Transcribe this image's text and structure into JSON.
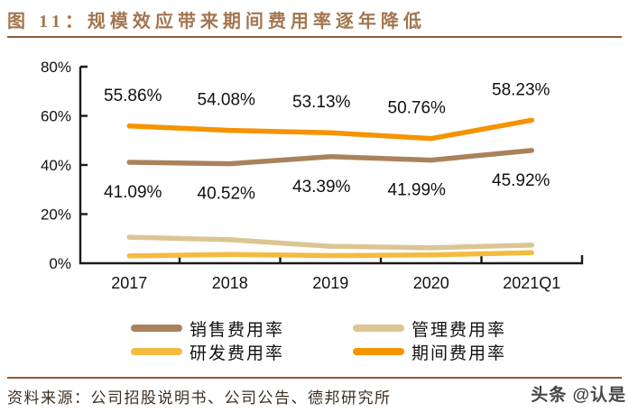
{
  "header": {
    "title": "图 11：规模效应带来期间费用率逐年降低"
  },
  "footer": {
    "source": "资料来源：公司招股说明书、公司公告、德邦研究所",
    "watermark": "头条 @认是"
  },
  "colors": {
    "title_brown": "#A3764F",
    "rule_brown": "#8F5B34",
    "axis_black": "#1a1a1a",
    "sales_brown": "#A9825C",
    "admin_tan": "#DBC593",
    "rd_yellow": "#F3BB3F",
    "period_orange": "#F59300"
  },
  "chart_data": {
    "type": "line",
    "title": "规模效应带来期间费用率逐年降低",
    "categories": [
      "2017",
      "2018",
      "2019",
      "2020",
      "2021Q1"
    ],
    "series": [
      {
        "name": "销售费用率",
        "color": "#A9825C",
        "values": [
          41.09,
          40.52,
          43.39,
          41.99,
          45.92
        ],
        "label_position": "below"
      },
      {
        "name": "管理费用率",
        "color": "#DBC593",
        "values": [
          10.6,
          9.6,
          6.9,
          6.3,
          7.4
        ],
        "label_position": "none"
      },
      {
        "name": "研发费用率",
        "color": "#F3BB3F",
        "values": [
          3.0,
          3.6,
          3.1,
          3.4,
          4.3
        ],
        "label_position": "none"
      },
      {
        "name": "期间费用率",
        "color": "#F59300",
        "values": [
          55.86,
          54.08,
          53.13,
          50.76,
          58.23
        ],
        "label_position": "above"
      }
    ],
    "data_labels": {
      "期间费用率": [
        "55.86%",
        "54.08%",
        "53.13%",
        "50.76%",
        "58.23%"
      ],
      "销售费用率": [
        "41.09%",
        "40.52%",
        "43.39%",
        "41.99%",
        "45.92%"
      ]
    },
    "xlabel": "",
    "ylabel": "",
    "ylim": [
      0,
      80
    ],
    "yticks": [
      "0%",
      "20%",
      "40%",
      "60%",
      "80%"
    ],
    "grid": false,
    "legend_position": "bottom"
  }
}
